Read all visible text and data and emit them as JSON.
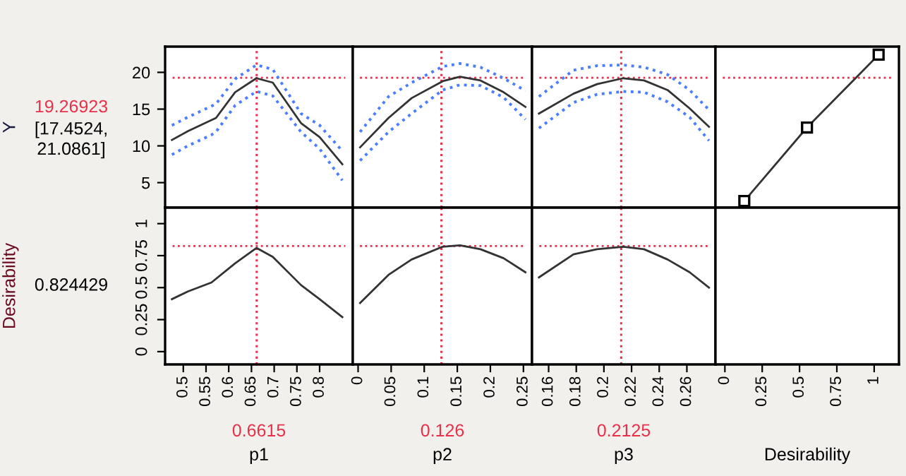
{
  "chart_data": [
    {
      "type": "line",
      "ylabel": "Y",
      "annotations": [
        "[17.4524,\n21.0861]"
      ],
      "tick_labels": "y",
      "xlim": [
        0.46,
        0.873
      ],
      "ylim": [
        1.6,
        23.5
      ],
      "yticks": [
        5,
        10,
        15,
        20
      ],
      "x": [
        0.475,
        0.51,
        0.562,
        0.572,
        0.614,
        0.661,
        0.697,
        0.759,
        0.8,
        0.85
      ],
      "series": [
        {
          "color": "#333333",
          "line_style": "solid",
          "values": [
            10.8,
            12,
            13.5,
            13.8,
            17.3,
            19.2,
            18.6,
            13.1,
            11.2,
            7.5
          ]
        },
        {
          "color": "#4a7dff",
          "line_style": "dotted",
          "values": [
            12.8,
            13.9,
            15.4,
            15.7,
            19.1,
            21,
            20.4,
            14.4,
            12.8,
            9.3
          ]
        },
        {
          "color": "#4a7dff",
          "line_style": "dotted",
          "values": [
            8.8,
            10,
            11.5,
            11.9,
            15.5,
            17.4,
            16.8,
            11.9,
            9.6,
            5.3
          ]
        }
      ],
      "ref_lines": [
        {
          "axis": "y",
          "value": 19.26923,
          "label": "19.26923",
          "color": "#e8304a",
          "line_style": "dotted"
        },
        {
          "axis": "x",
          "value": 0.6615,
          "label": null,
          "color": "#e8304a",
          "line_style": "dotted"
        }
      ]
    },
    {
      "type": "line",
      "tick_labels": false,
      "xlim": [
        -0.008,
        0.263
      ],
      "ylim": [
        1.6,
        23.5
      ],
      "x": [
        0.003,
        0.046,
        0.081,
        0.128,
        0.154,
        0.185,
        0.22,
        0.253
      ],
      "series": [
        {
          "color": "#333333",
          "line_style": "solid",
          "values": [
            9.8,
            13.8,
            16.5,
            18.8,
            19.4,
            18.9,
            17.3,
            15.3
          ]
        },
        {
          "color": "#4a7dff",
          "line_style": "dotted",
          "values": [
            11.9,
            16.7,
            18.6,
            20.8,
            21.2,
            20.7,
            19.2,
            17.5
          ]
        },
        {
          "color": "#4a7dff",
          "line_style": "dotted",
          "values": [
            8,
            11.9,
            14.4,
            17.6,
            18.3,
            18.2,
            16.6,
            13.6
          ]
        }
      ],
      "ref_lines": [
        {
          "axis": "y",
          "value": 19.26923,
          "label": null,
          "color": "#e8304a",
          "line_style": "dotted"
        },
        {
          "axis": "x",
          "value": 0.126,
          "label": null,
          "color": "#e8304a",
          "line_style": "dotted"
        }
      ]
    },
    {
      "type": "line",
      "tick_labels": false,
      "xlim": [
        0.148,
        0.2807
      ],
      "ylim": [
        1.6,
        23.5
      ],
      "x": [
        0.153,
        0.178,
        0.195,
        0.214,
        0.229,
        0.246,
        0.262,
        0.276
      ],
      "series": [
        {
          "color": "#333333",
          "line_style": "solid",
          "values": [
            14.4,
            17.1,
            18.4,
            19.2,
            18.9,
            17.6,
            15.1,
            12.6
          ]
        },
        {
          "color": "#4a7dff",
          "line_style": "dotted",
          "values": [
            16.7,
            20.3,
            20.9,
            21,
            20.7,
            19.7,
            17.6,
            14.9
          ]
        },
        {
          "color": "#4a7dff",
          "line_style": "dotted",
          "values": [
            12.4,
            15.9,
            17,
            17.4,
            17.3,
            16,
            13.9,
            10.7
          ]
        }
      ],
      "ref_lines": [
        {
          "axis": "y",
          "value": 19.26923,
          "label": null,
          "color": "#e8304a",
          "line_style": "dotted"
        },
        {
          "axis": "x",
          "value": 0.2125,
          "label": null,
          "color": "#e8304a",
          "line_style": "dotted"
        }
      ]
    },
    {
      "type": "line",
      "tick_labels": false,
      "marker": "square",
      "xlim": [
        -0.063,
        1.166
      ],
      "ylim": [
        1.6,
        23.5
      ],
      "x": [
        0.13,
        0.55,
        1.03
      ],
      "series": [
        {
          "color": "#333333",
          "line_style": "solid",
          "values": [
            2.5,
            12.5,
            22.4
          ]
        }
      ],
      "ref_lines": [
        {
          "axis": "y",
          "value": 19.26923,
          "label": null,
          "color": "#e8304a",
          "line_style": "dotted"
        }
      ]
    },
    {
      "type": "line",
      "ylabel": "Desirability",
      "xlabel": "p1",
      "annotations": [
        "0.824429"
      ],
      "xlim": [
        0.46,
        0.873
      ],
      "xticks": [
        0.5,
        0.55,
        0.6,
        0.65,
        0.7,
        0.75,
        0.8
      ],
      "ylim": [
        -0.1,
        1.125
      ],
      "yticks": [
        0,
        0.25,
        0.5,
        0.75,
        1
      ],
      "x": [
        0.475,
        0.51,
        0.562,
        0.614,
        0.661,
        0.697,
        0.759,
        0.8,
        0.85
      ],
      "series": [
        {
          "color": "#333333",
          "line_style": "solid",
          "values": [
            0.41,
            0.47,
            0.54,
            0.69,
            0.81,
            0.74,
            0.52,
            0.41,
            0.27
          ]
        }
      ],
      "ref_lines": [
        {
          "axis": "y",
          "value": 0.824429,
          "label": null,
          "color": "#e8304a",
          "line_style": "dotted"
        },
        {
          "axis": "x",
          "value": 0.6615,
          "label": "0.6615",
          "color": "#e8304a",
          "line_style": "dotted"
        }
      ]
    },
    {
      "type": "line",
      "xlabel": "p2",
      "tick_labels": "x",
      "xlim": [
        -0.008,
        0.263
      ],
      "xticks": [
        0,
        0.05,
        0.1,
        0.15,
        0.2,
        0.25
      ],
      "ylim": [
        -0.1,
        1.125
      ],
      "x": [
        0.003,
        0.046,
        0.081,
        0.128,
        0.154,
        0.185,
        0.22,
        0.253
      ],
      "series": [
        {
          "color": "#333333",
          "line_style": "solid",
          "values": [
            0.38,
            0.6,
            0.72,
            0.82,
            0.83,
            0.8,
            0.73,
            0.62
          ]
        }
      ],
      "ref_lines": [
        {
          "axis": "y",
          "value": 0.824429,
          "label": null,
          "color": "#e8304a",
          "line_style": "dotted"
        },
        {
          "axis": "x",
          "value": 0.126,
          "label": "0.126",
          "color": "#e8304a",
          "line_style": "dotted"
        }
      ]
    },
    {
      "type": "line",
      "xlabel": "p3",
      "tick_labels": "x",
      "xlim": [
        0.148,
        0.2807
      ],
      "xticks": [
        0.16,
        0.18,
        0.2,
        0.22,
        0.24,
        0.26
      ],
      "ylim": [
        -0.1,
        1.125
      ],
      "x": [
        0.153,
        0.178,
        0.195,
        0.214,
        0.229,
        0.246,
        0.262,
        0.276
      ],
      "series": [
        {
          "color": "#333333",
          "line_style": "solid",
          "values": [
            0.58,
            0.76,
            0.8,
            0.82,
            0.8,
            0.72,
            0.62,
            0.5
          ]
        }
      ],
      "ref_lines": [
        {
          "axis": "y",
          "value": 0.824429,
          "label": null,
          "color": "#e8304a",
          "line_style": "dotted"
        },
        {
          "axis": "x",
          "value": 0.2125,
          "label": "0.2125",
          "color": "#e8304a",
          "line_style": "dotted"
        }
      ]
    },
    {
      "type": "line",
      "xlabel": "Desirability",
      "tick_labels": "x",
      "xlim": [
        -0.063,
        1.166
      ],
      "xticks": [
        0,
        0.25,
        0.5,
        0.75,
        1
      ],
      "ylim": [
        -0.1,
        1.125
      ]
    }
  ]
}
